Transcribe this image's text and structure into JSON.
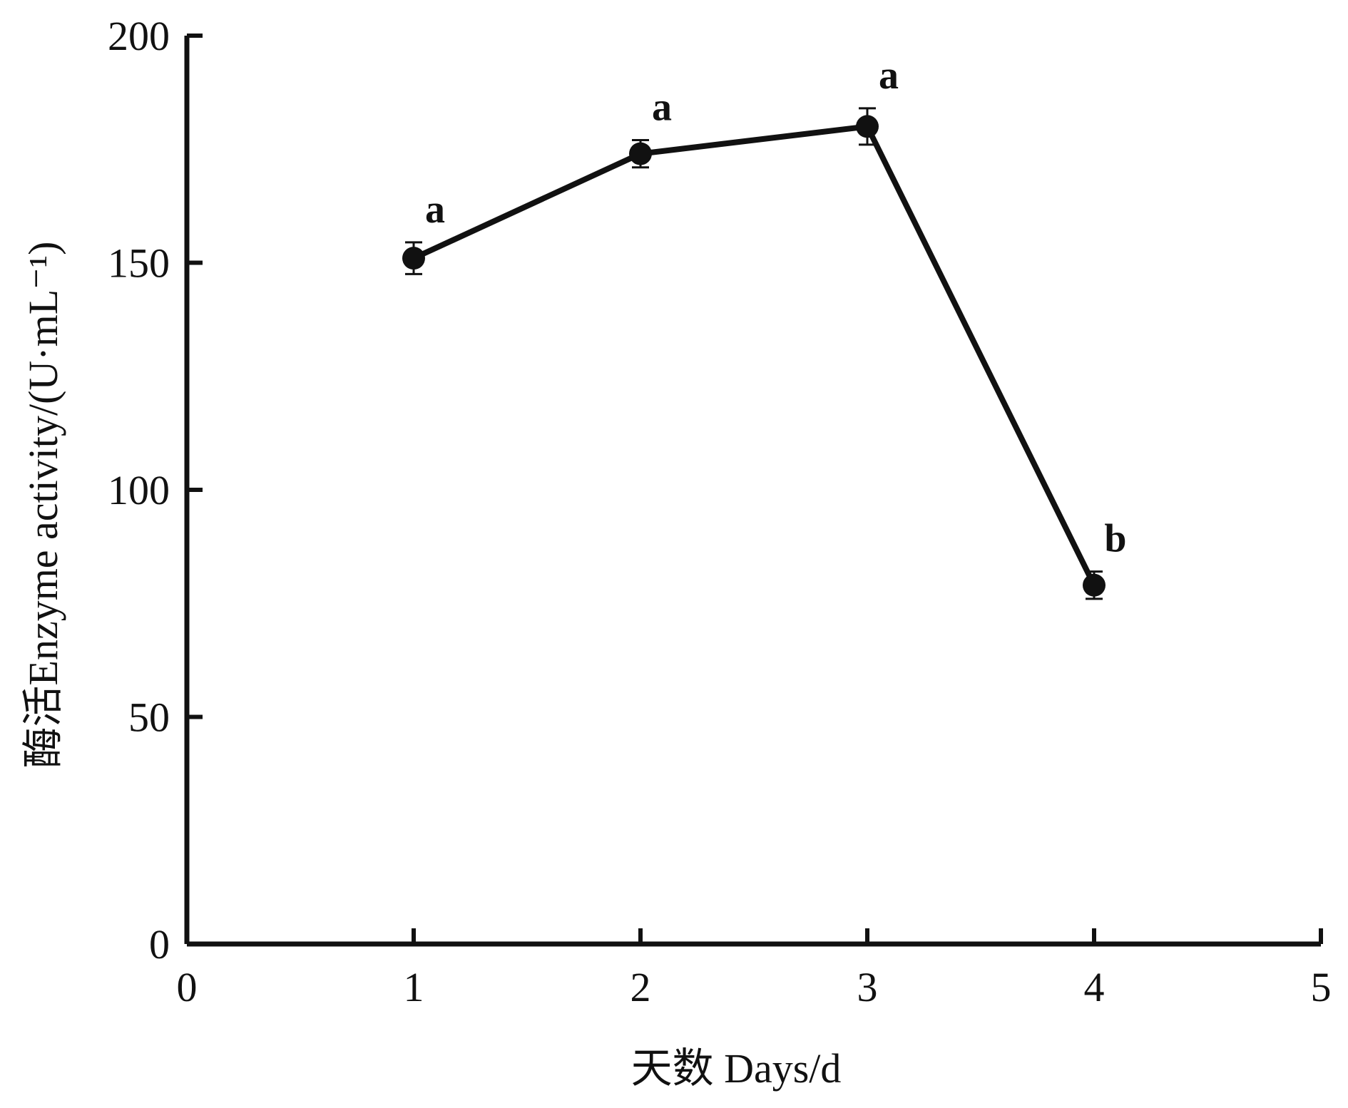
{
  "chart_data": {
    "type": "line",
    "xlabel": "天数  Days/d",
    "ylabel": "酶活Enzyme activity/(U·mL⁻¹)",
    "xlim": [
      0,
      5
    ],
    "ylim": [
      0,
      200
    ],
    "xticks": [
      0,
      1,
      2,
      3,
      4,
      5
    ],
    "yticks": [
      0,
      50,
      100,
      150,
      200
    ],
    "grid": false,
    "legend": "none",
    "series": [
      {
        "x": [
          1,
          2,
          3,
          4
        ],
        "y": [
          151,
          174,
          180,
          79
        ],
        "error": [
          3.5,
          3,
          4,
          3
        ],
        "labels": [
          "a",
          "a",
          "a",
          "b"
        ]
      }
    ],
    "colors": {
      "line": "#111111",
      "marker": "#111111",
      "axis": "#111111"
    }
  }
}
